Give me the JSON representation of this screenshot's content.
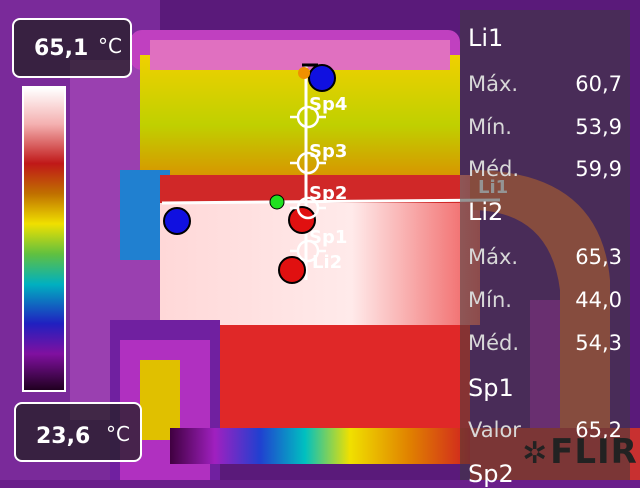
{
  "scale": {
    "max_value": "65,1",
    "min_value": "23,6",
    "unit": "°C"
  },
  "markers": {
    "spots": [
      "Sp1",
      "Sp2",
      "Sp3",
      "Sp4"
    ],
    "lines": [
      "Li1",
      "Li2"
    ]
  },
  "panel": {
    "sections": [
      {
        "title": "Li1",
        "rows": [
          {
            "label": "Máx.",
            "value": "60,7"
          },
          {
            "label": "Mín.",
            "value": "53,9"
          },
          {
            "label": "Méd.",
            "value": "59,9"
          }
        ]
      },
      {
        "title": "Li2",
        "rows": [
          {
            "label": "Máx.",
            "value": "65,3"
          },
          {
            "label": "Mín.",
            "value": "44,0"
          },
          {
            "label": "Méd.",
            "value": "54,3"
          }
        ]
      },
      {
        "title": "Sp1",
        "rows": [
          {
            "label": "Valor",
            "value": "65,2"
          }
        ]
      },
      {
        "title": "Sp2",
        "rows": []
      }
    ]
  },
  "brand": "FLIR",
  "colors": {
    "hot": "#ffffff",
    "warm": "#e03030",
    "mid": "#f0e000",
    "cool": "#00c0c0",
    "cold": "#6a1f8a"
  }
}
